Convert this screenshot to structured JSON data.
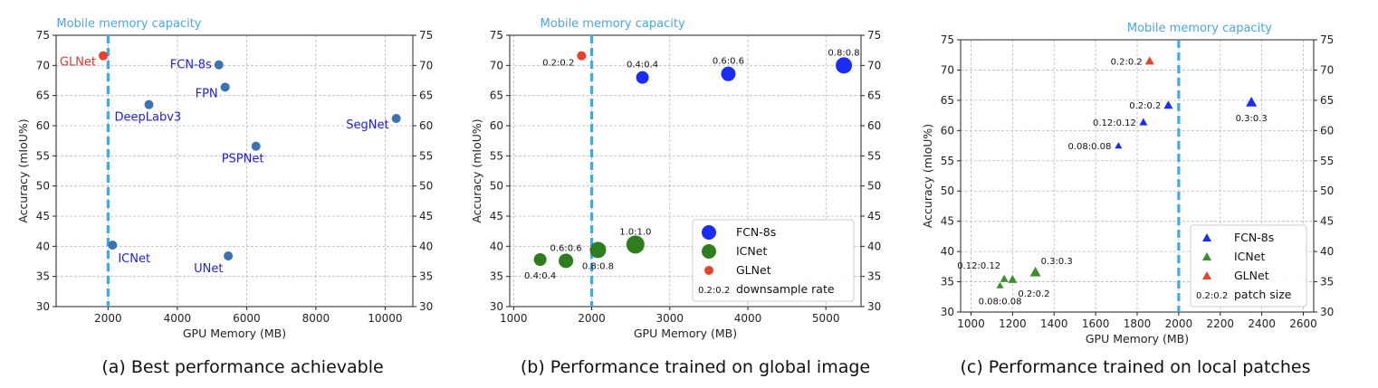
{
  "colors": {
    "fcn_point": "#3a73ad",
    "glnet": "#e8412c",
    "label_blue": "#1f1fd0",
    "fcn8s_b": "#1a2df5",
    "icnet": "#2e7d1e",
    "fcn8s_c": "#1a2df5",
    "icnet_c": "#3d8f2e",
    "glnet_c": "#e8412c",
    "memory_line": "#4aa6e0",
    "grid": "#b8b8b8"
  },
  "chart_data": [
    {
      "id": "a",
      "type": "scatter",
      "caption": "(a) Best performance achievable",
      "xlabel": "GPU Memory (MB)",
      "ylabel": "Accuracy (mIoU%)",
      "xlim": [
        500,
        10800
      ],
      "ylim": [
        30,
        75
      ],
      "xticks": [
        2000,
        4000,
        6000,
        8000,
        10000
      ],
      "yticks": [
        30,
        35,
        40,
        45,
        50,
        55,
        60,
        65,
        70,
        75
      ],
      "right_yticks": true,
      "grid": true,
      "memory_line": {
        "x": 2000,
        "label": "Mobile  memory capacity"
      },
      "points": [
        {
          "label": "GLNet",
          "x": 1860,
          "y": 71.6,
          "color": "glnet",
          "label_color": "red",
          "label_pos": "left-below"
        },
        {
          "label": "FCN-8s",
          "x": 5200,
          "y": 70.1,
          "color": "fcn_point",
          "label_color": "blue",
          "label_pos": "left"
        },
        {
          "label": "FPN",
          "x": 5380,
          "y": 66.4,
          "color": "fcn_point",
          "label_color": "blue",
          "label_pos": "left-below"
        },
        {
          "label": "DeepLabv3",
          "x": 3180,
          "y": 63.5,
          "color": "fcn_point",
          "label_color": "blue",
          "label_pos": "below-left"
        },
        {
          "label": "SegNet",
          "x": 10320,
          "y": 61.2,
          "color": "fcn_point",
          "label_color": "blue",
          "label_pos": "left-below"
        },
        {
          "label": "PSPNet",
          "x": 6270,
          "y": 56.6,
          "color": "fcn_point",
          "label_color": "blue",
          "label_pos": "below-left"
        },
        {
          "label": "ICNet",
          "x": 2130,
          "y": 40.2,
          "color": "fcn_point",
          "label_color": "blue",
          "label_pos": "below-right"
        },
        {
          "label": "UNet",
          "x": 5470,
          "y": 38.4,
          "color": "fcn_point",
          "label_color": "blue",
          "label_pos": "below-left"
        }
      ]
    },
    {
      "id": "b",
      "type": "scatter",
      "caption": "(b) Performance trained on global image",
      "xlabel": "GPU Memory (MB)",
      "ylabel": "Accuracy (mIoU%)",
      "xlim": [
        950,
        5450
      ],
      "ylim": [
        30,
        75
      ],
      "xticks": [
        1000,
        2000,
        3000,
        4000,
        5000
      ],
      "yticks": [
        30,
        35,
        40,
        45,
        50,
        55,
        60,
        65,
        70,
        75
      ],
      "right_yticks": true,
      "grid": true,
      "memory_line": {
        "x": 2000,
        "label": "Mobile  memory capacity"
      },
      "series": [
        {
          "name": "FCN-8s",
          "color": "fcn8s_b",
          "marker": "circle",
          "points": [
            {
              "label": "0.4:0.4",
              "x": 2650,
              "y": 68.0,
              "size": 7
            },
            {
              "label": "0.6:0.6",
              "x": 3750,
              "y": 68.6,
              "size": 8
            },
            {
              "label": "0.8:0.8",
              "x": 5230,
              "y": 70.0,
              "size": 9
            }
          ]
        },
        {
          "name": "ICNet",
          "color": "icnet",
          "marker": "circle",
          "points": [
            {
              "label": "0.4:0.4",
              "x": 1340,
              "y": 37.8,
              "size": 7
            },
            {
              "label": "0.6:0.6",
              "x": 1670,
              "y": 37.6,
              "size": 8
            },
            {
              "label": "0.8:0.8",
              "x": 2080,
              "y": 39.4,
              "size": 9
            },
            {
              "label": "1.0:1.0",
              "x": 2560,
              "y": 40.3,
              "size": 10
            }
          ]
        },
        {
          "name": "GLNet",
          "color": "glnet",
          "marker": "circle",
          "points": [
            {
              "label": "0.2:0.2",
              "x": 1870,
              "y": 71.6,
              "size": 5
            }
          ]
        }
      ],
      "legend": {
        "position": "lower-right",
        "entries": [
          "FCN-8s",
          "ICNet",
          "GLNet"
        ],
        "extra": {
          "sample": "0.2:0.2",
          "text": "downsample rate"
        }
      }
    },
    {
      "id": "c",
      "type": "scatter",
      "caption": "(c) Performance trained on local patches",
      "xlabel": "GPU Memory (MB)",
      "ylabel": "Accuracy (mIoU%)",
      "xlim": [
        950,
        2650
      ],
      "ylim": [
        30,
        75
      ],
      "xticks": [
        1000,
        1200,
        1400,
        1600,
        1800,
        2000,
        2200,
        2400,
        2600
      ],
      "yticks": [
        30,
        35,
        40,
        45,
        50,
        55,
        60,
        65,
        70,
        75
      ],
      "right_yticks": true,
      "grid": true,
      "memory_line": {
        "x": 2000,
        "label": "Mobile  memory capacity"
      },
      "series": [
        {
          "name": "FCN-8s",
          "color": "fcn8s_c",
          "marker": "triangle",
          "points": [
            {
              "label": "0.08:0.08",
              "x": 1710,
              "y": 57.5,
              "size": 4
            },
            {
              "label": "0.12:0.12",
              "x": 1830,
              "y": 61.4,
              "size": 4.5
            },
            {
              "label": "0.2:0.2",
              "x": 1950,
              "y": 64.2,
              "size": 5
            },
            {
              "label": "0.3:0.3",
              "x": 2350,
              "y": 64.7,
              "size": 6
            }
          ]
        },
        {
          "name": "ICNet",
          "color": "icnet_c",
          "marker": "triangle",
          "points": [
            {
              "label": "0.08:0.08",
              "x": 1140,
              "y": 34.4,
              "size": 4
            },
            {
              "label": "0.12:0.12",
              "x": 1160,
              "y": 35.5,
              "size": 4.5
            },
            {
              "label": "0.2:0.2",
              "x": 1200,
              "y": 35.4,
              "size": 5
            },
            {
              "label": "0.3:0.3",
              "x": 1310,
              "y": 36.6,
              "size": 6
            }
          ]
        },
        {
          "name": "GLNet",
          "color": "glnet_c",
          "marker": "triangle",
          "points": [
            {
              "label": "0.2:0.2",
              "x": 1860,
              "y": 71.5,
              "size": 5
            }
          ]
        }
      ],
      "legend": {
        "position": "lower-right",
        "entries": [
          "FCN-8s",
          "ICNet",
          "GLNet"
        ],
        "extra": {
          "sample": "0.2:0.2",
          "text": "patch size"
        }
      }
    }
  ]
}
